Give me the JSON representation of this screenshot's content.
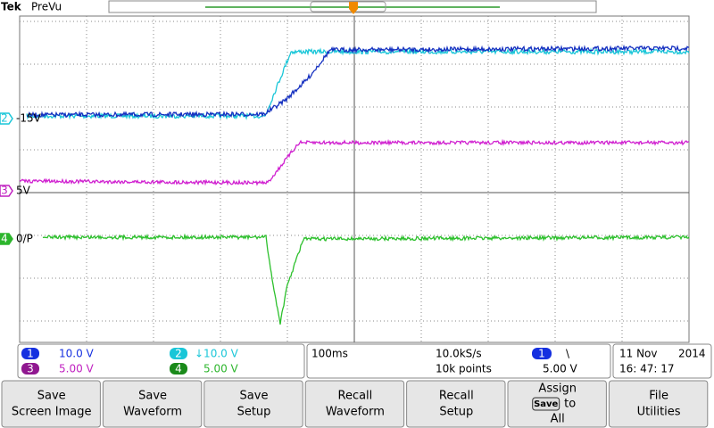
{
  "header": {
    "brand": "Tek",
    "mode": "PreVu"
  },
  "channel_markers": [
    {
      "number": "2",
      "label": "-15V"
    },
    {
      "number": "3",
      "label": "5V"
    },
    {
      "number": "4",
      "label": "0/P"
    }
  ],
  "channel_settings": [
    {
      "number": "1",
      "scale": "10.0 V"
    },
    {
      "number": "2",
      "scale": "↓10.0 V"
    },
    {
      "number": "3",
      "scale": "5.00 V"
    },
    {
      "number": "4",
      "scale": "5.00 V"
    }
  ],
  "acquisition": {
    "timebase": "100ms",
    "sample_rate": "10.0kS/s",
    "record_length": "10k points"
  },
  "trigger": {
    "source": "1",
    "slope": "\\",
    "level": "5.00 V"
  },
  "datetime": {
    "date": "11 Nov",
    "year": "2014",
    "time": "16: 47: 17"
  },
  "menu_buttons": [
    {
      "lines": [
        "Save",
        "Screen Image"
      ]
    },
    {
      "lines": [
        "Save",
        "Waveform"
      ]
    },
    {
      "lines": [
        "Save",
        "Setup"
      ]
    },
    {
      "lines": [
        "Recall",
        "Waveform"
      ]
    },
    {
      "lines": [
        "Recall",
        "Setup"
      ]
    },
    {
      "lines": [
        "Assign",
        "Save",
        "to",
        "All"
      ]
    },
    {
      "lines": [
        "File",
        "Utilities"
      ]
    }
  ]
}
